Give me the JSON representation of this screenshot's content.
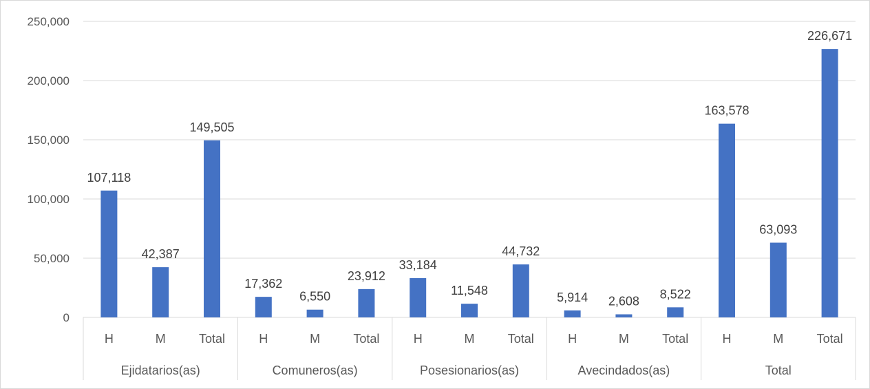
{
  "chart_data": {
    "type": "bar",
    "title": "",
    "xlabel": "",
    "ylabel": "",
    "ylim": [
      0,
      250000
    ],
    "yticks": [
      0,
      50000,
      100000,
      150000,
      200000,
      250000
    ],
    "ytick_labels": [
      "0",
      "50,000",
      "100,000",
      "150,000",
      "200,000",
      "250,000"
    ],
    "grid": true,
    "legend": "none",
    "bar_color": "#4472C4",
    "groups": [
      {
        "name": "Ejidatarios(as)",
        "bars": [
          {
            "label": "H",
            "value": 107118,
            "display": "107,118"
          },
          {
            "label": "M",
            "value": 42387,
            "display": "42,387"
          },
          {
            "label": "Total",
            "value": 149505,
            "display": "149,505"
          }
        ]
      },
      {
        "name": "Comuneros(as)",
        "bars": [
          {
            "label": "H",
            "value": 17362,
            "display": "17,362"
          },
          {
            "label": "M",
            "value": 6550,
            "display": "6,550"
          },
          {
            "label": "Total",
            "value": 23912,
            "display": "23,912"
          }
        ]
      },
      {
        "name": "Posesionarios(as)",
        "bars": [
          {
            "label": "H",
            "value": 33184,
            "display": "33,184"
          },
          {
            "label": "M",
            "value": 11548,
            "display": "11,548"
          },
          {
            "label": "Total",
            "value": 44732,
            "display": "44,732"
          }
        ]
      },
      {
        "name": "Avecindados(as)",
        "bars": [
          {
            "label": "H",
            "value": 5914,
            "display": "5,914"
          },
          {
            "label": "M",
            "value": 2608,
            "display": "2,608"
          },
          {
            "label": "Total",
            "value": 8522,
            "display": "8,522"
          }
        ]
      },
      {
        "name": "Total",
        "bars": [
          {
            "label": "H",
            "value": 163578,
            "display": "163,578"
          },
          {
            "label": "M",
            "value": 63093,
            "display": "63,093"
          },
          {
            "label": "Total",
            "value": 226671,
            "display": "226,671"
          }
        ]
      }
    ]
  }
}
